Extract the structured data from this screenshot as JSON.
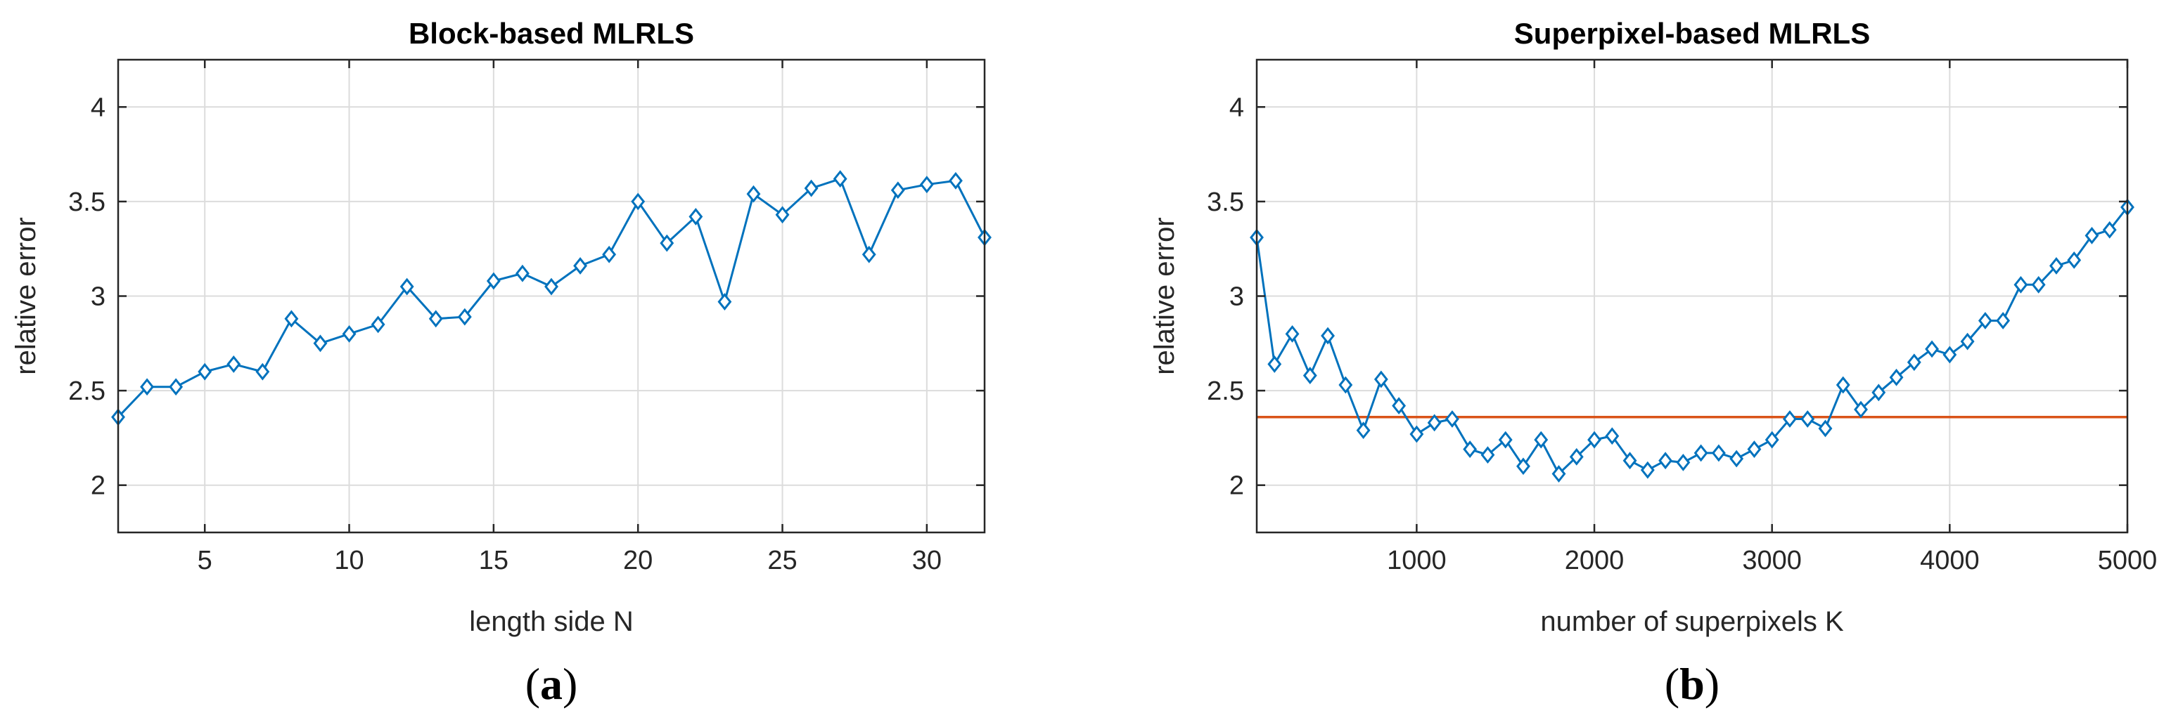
{
  "chart_data": [
    {
      "type": "line",
      "title": "Block-based MLRLS",
      "xlabel": "length side N",
      "ylabel": "relative error",
      "xlim": [
        2,
        32
      ],
      "ylim": [
        1.75,
        4.25
      ],
      "xticks": [
        5,
        10,
        15,
        20,
        25,
        30
      ],
      "yticks": [
        2,
        2.5,
        3,
        3.5,
        4
      ],
      "xtick_labels": [
        "5",
        "10",
        "15",
        "20",
        "25",
        "30"
      ],
      "ytick_labels": [
        "2",
        "2.5",
        "3",
        "3.5",
        "4"
      ],
      "grid": true,
      "panel_label": "a",
      "series": [
        {
          "color": "#0072BD",
          "marker": "diamond",
          "x": [
            2,
            3,
            4,
            5,
            6,
            7,
            8,
            9,
            10,
            11,
            12,
            13,
            14,
            15,
            16,
            17,
            18,
            19,
            20,
            21,
            22,
            23,
            24,
            25,
            26,
            27,
            28,
            29,
            30,
            31,
            32
          ],
          "y": [
            2.36,
            2.52,
            2.52,
            2.6,
            2.64,
            2.6,
            2.88,
            2.75,
            2.8,
            2.85,
            3.05,
            2.88,
            2.89,
            3.08,
            3.12,
            3.05,
            3.16,
            3.22,
            3.5,
            3.28,
            3.42,
            2.97,
            3.54,
            3.43,
            3.57,
            3.62,
            3.22,
            3.56,
            3.59,
            3.61,
            3.31
          ]
        }
      ]
    },
    {
      "type": "line",
      "title": "Superpixel-based MLRLS",
      "xlabel": "number of superpixels K",
      "ylabel": "relative error",
      "xlim": [
        100,
        5000
      ],
      "ylim": [
        1.75,
        4.25
      ],
      "xticks": [
        1000,
        2000,
        3000,
        4000,
        5000
      ],
      "yticks": [
        2,
        2.5,
        3,
        3.5,
        4
      ],
      "xtick_labels": [
        "1000",
        "2000",
        "3000",
        "4000",
        "5000"
      ],
      "ytick_labels": [
        "2",
        "2.5",
        "3",
        "3.5",
        "4"
      ],
      "grid": true,
      "panel_label": "b",
      "reference_line": {
        "y": 2.36,
        "color": "#D95319"
      },
      "series": [
        {
          "color": "#0072BD",
          "marker": "diamond",
          "x": [
            100,
            200,
            300,
            400,
            500,
            600,
            700,
            800,
            900,
            1000,
            1100,
            1200,
            1300,
            1400,
            1500,
            1600,
            1700,
            1800,
            1900,
            2000,
            2100,
            2200,
            2300,
            2400,
            2500,
            2600,
            2700,
            2800,
            2900,
            3000,
            3100,
            3200,
            3300,
            3400,
            3500,
            3600,
            3700,
            3800,
            3900,
            4000,
            4100,
            4200,
            4300,
            4400,
            4500,
            4600,
            4700,
            4800,
            4900,
            5000
          ],
          "y": [
            3.31,
            2.64,
            2.8,
            2.58,
            2.79,
            2.53,
            2.29,
            2.56,
            2.42,
            2.27,
            2.33,
            2.35,
            2.19,
            2.16,
            2.24,
            2.1,
            2.24,
            2.06,
            2.15,
            2.24,
            2.26,
            2.13,
            2.08,
            2.13,
            2.12,
            2.17,
            2.17,
            2.14,
            2.19,
            2.24,
            2.35,
            2.35,
            2.3,
            2.53,
            2.4,
            2.49,
            2.57,
            2.65,
            2.72,
            2.69,
            2.76,
            2.87,
            2.87,
            3.06,
            3.06,
            3.16,
            3.19,
            3.32,
            3.35,
            3.47
          ]
        }
      ]
    }
  ]
}
